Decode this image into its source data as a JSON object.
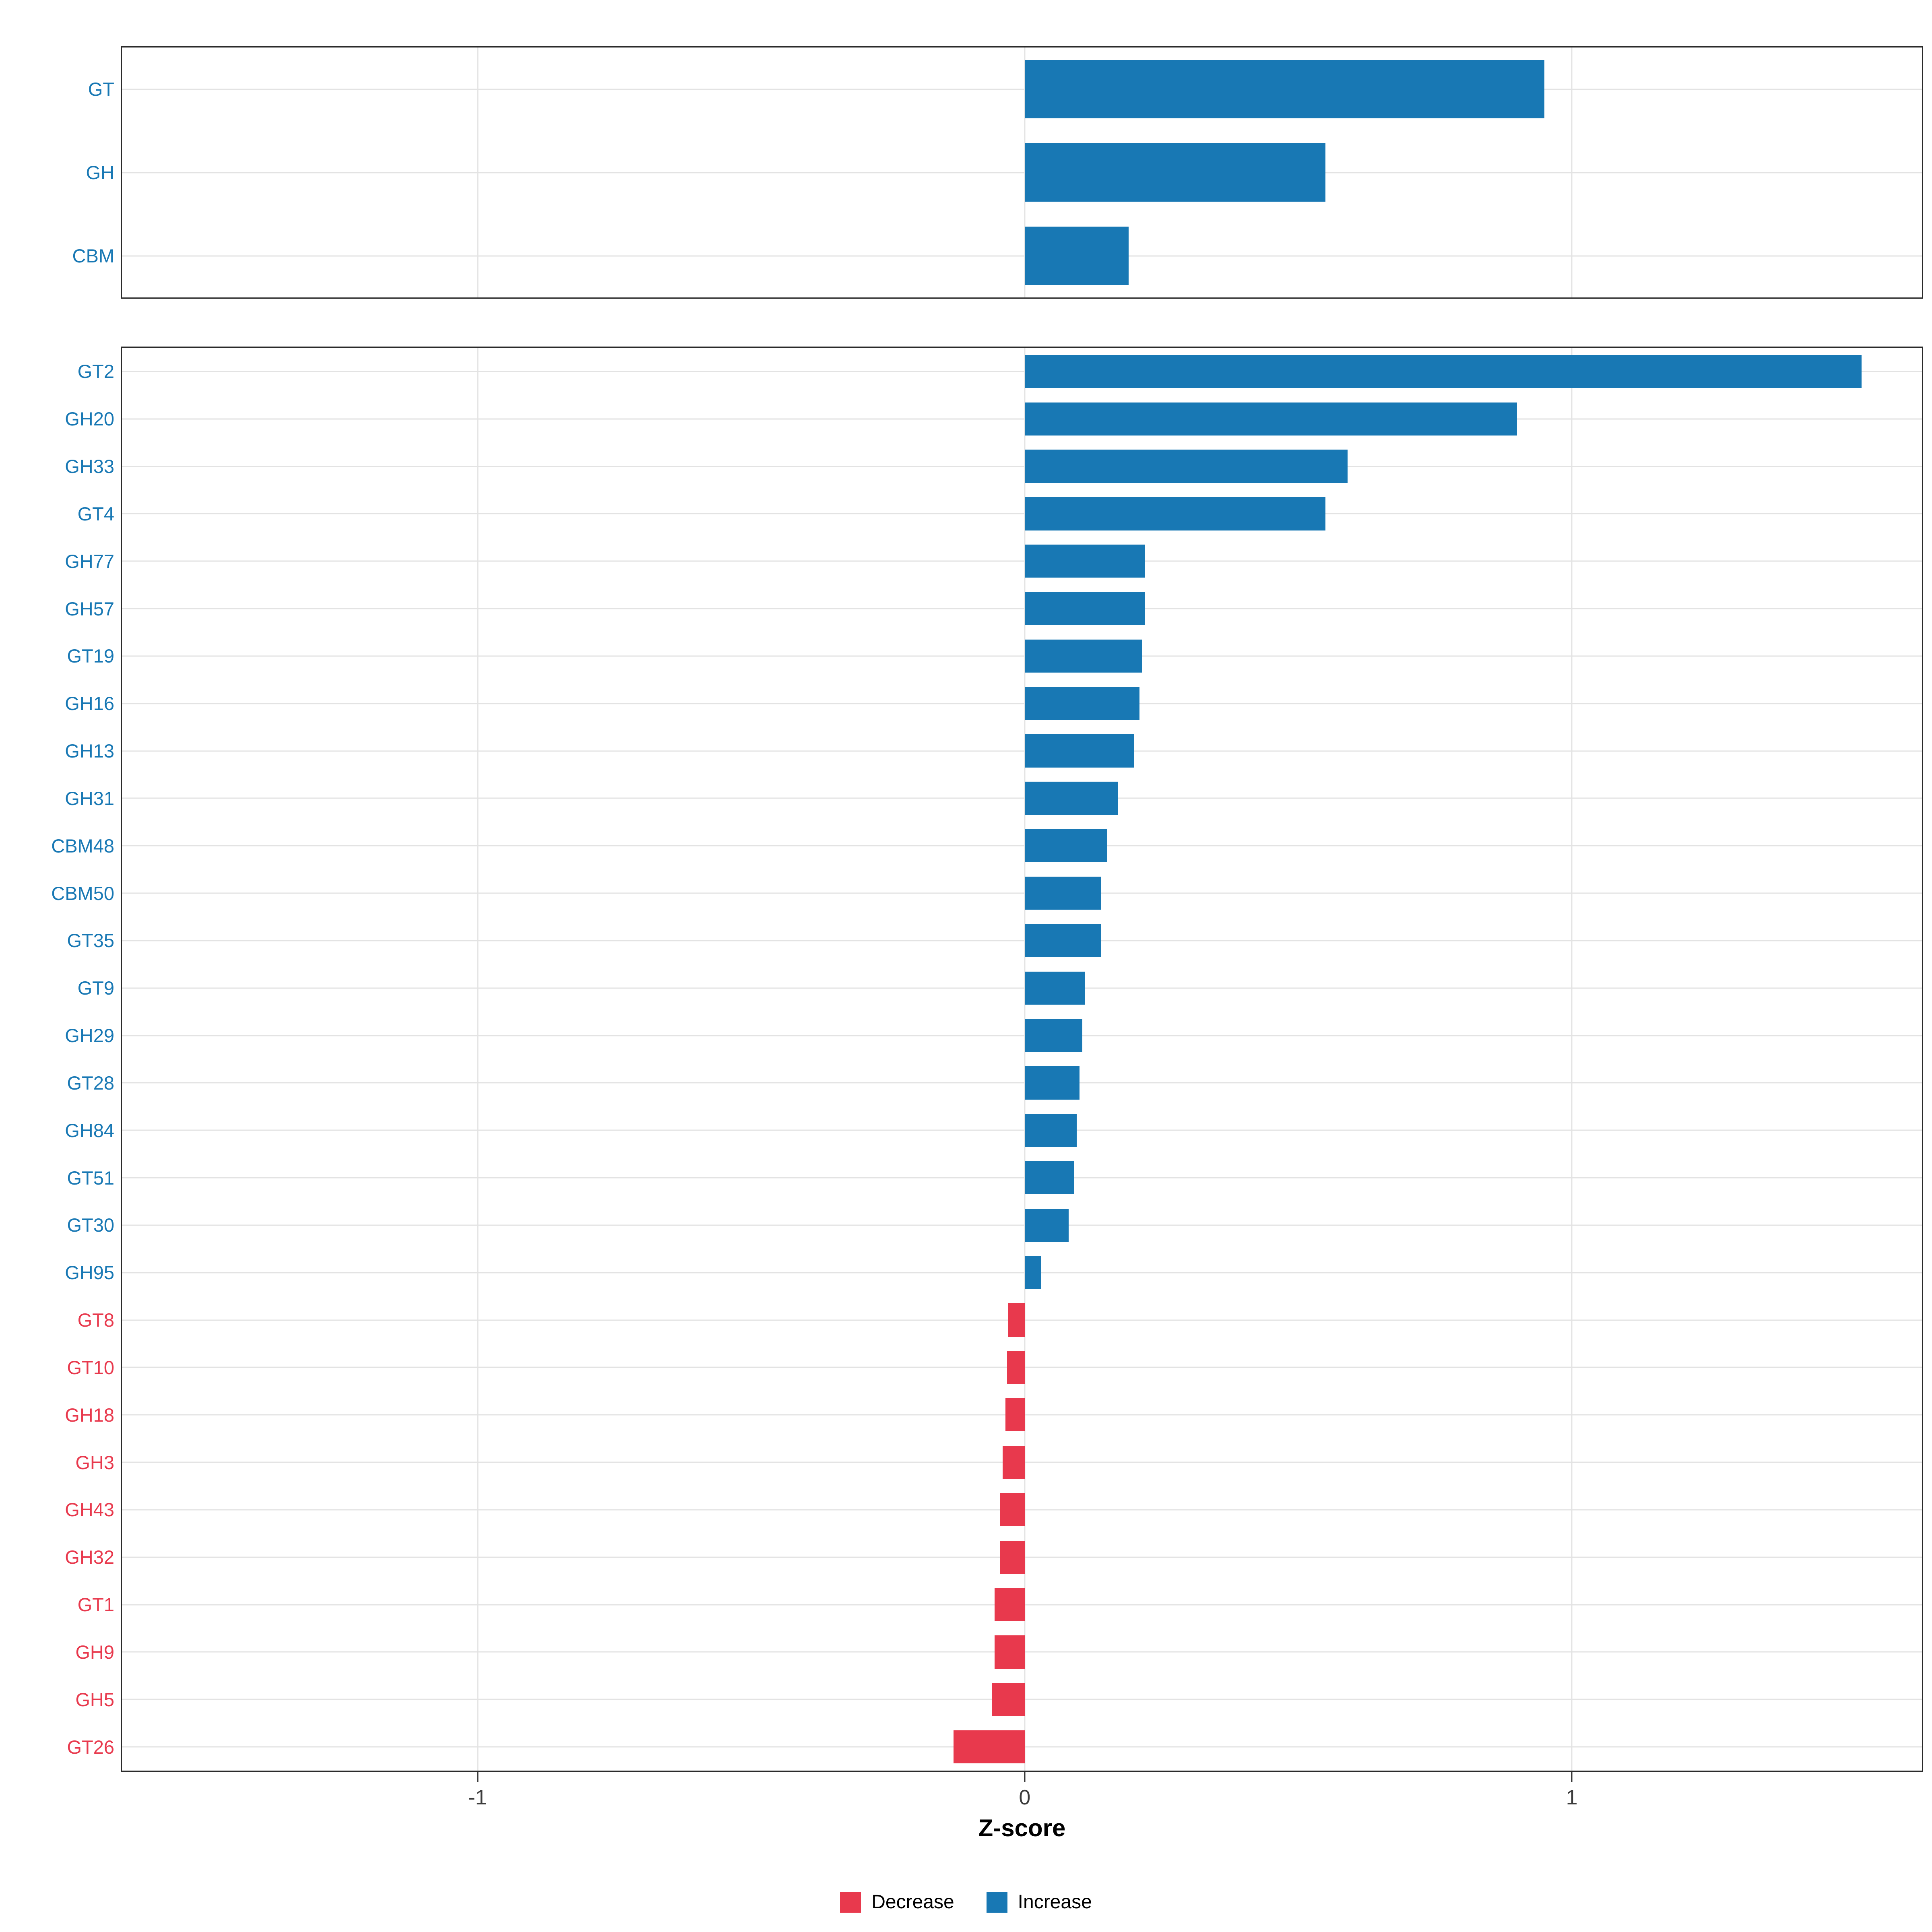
{
  "chart_data": {
    "type": "bar",
    "orientation": "horizontal",
    "title": "",
    "xlabel": "Z-score",
    "x_axis": {
      "min": -1.65,
      "max": 1.64,
      "ticks": [
        -1,
        0,
        1
      ],
      "tick_labels": [
        "-1",
        "0",
        "1"
      ]
    },
    "colors": {
      "increase": "#1878B4",
      "decrease": "#E8394D",
      "grid": "#E3E3E3",
      "panel_border": "#2B2B2B",
      "tick_text": "#3C3C3C"
    },
    "panels": [
      {
        "name": "cazyme-class-summary",
        "items": [
          {
            "label": "GT",
            "value": 0.95
          },
          {
            "label": "GH",
            "value": 0.55
          },
          {
            "label": "CBM",
            "value": 0.19
          }
        ]
      },
      {
        "name": "cazyme-family-detail",
        "items": [
          {
            "label": "GT2",
            "value": 1.53
          },
          {
            "label": "GH20",
            "value": 0.9
          },
          {
            "label": "GH33",
            "value": 0.59
          },
          {
            "label": "GT4",
            "value": 0.55
          },
          {
            "label": "GH77",
            "value": 0.22
          },
          {
            "label": "GH57",
            "value": 0.22
          },
          {
            "label": "GT19",
            "value": 0.215
          },
          {
            "label": "GH16",
            "value": 0.21
          },
          {
            "label": "GH13",
            "value": 0.2
          },
          {
            "label": "GH31",
            "value": 0.17
          },
          {
            "label": "CBM48",
            "value": 0.15
          },
          {
            "label": "CBM50",
            "value": 0.14
          },
          {
            "label": "GT35",
            "value": 0.14
          },
          {
            "label": "GT9",
            "value": 0.11
          },
          {
            "label": "GH29",
            "value": 0.105
          },
          {
            "label": "GT28",
            "value": 0.1
          },
          {
            "label": "GH84",
            "value": 0.095
          },
          {
            "label": "GT51",
            "value": 0.09
          },
          {
            "label": "GT30",
            "value": 0.08
          },
          {
            "label": "GH95",
            "value": 0.03
          },
          {
            "label": "GT8",
            "value": -0.03
          },
          {
            "label": "GT10",
            "value": -0.032
          },
          {
            "label": "GH18",
            "value": -0.035
          },
          {
            "label": "GH3",
            "value": -0.04
          },
          {
            "label": "GH43",
            "value": -0.045
          },
          {
            "label": "GH32",
            "value": -0.045
          },
          {
            "label": "GT1",
            "value": -0.055
          },
          {
            "label": "GH9",
            "value": -0.055
          },
          {
            "label": "GH5",
            "value": -0.06
          },
          {
            "label": "GT26",
            "value": -0.13
          }
        ]
      }
    ],
    "legend": [
      {
        "label": "Decrease",
        "color": "#E8394D"
      },
      {
        "label": "Increase",
        "color": "#1878B4"
      }
    ]
  }
}
